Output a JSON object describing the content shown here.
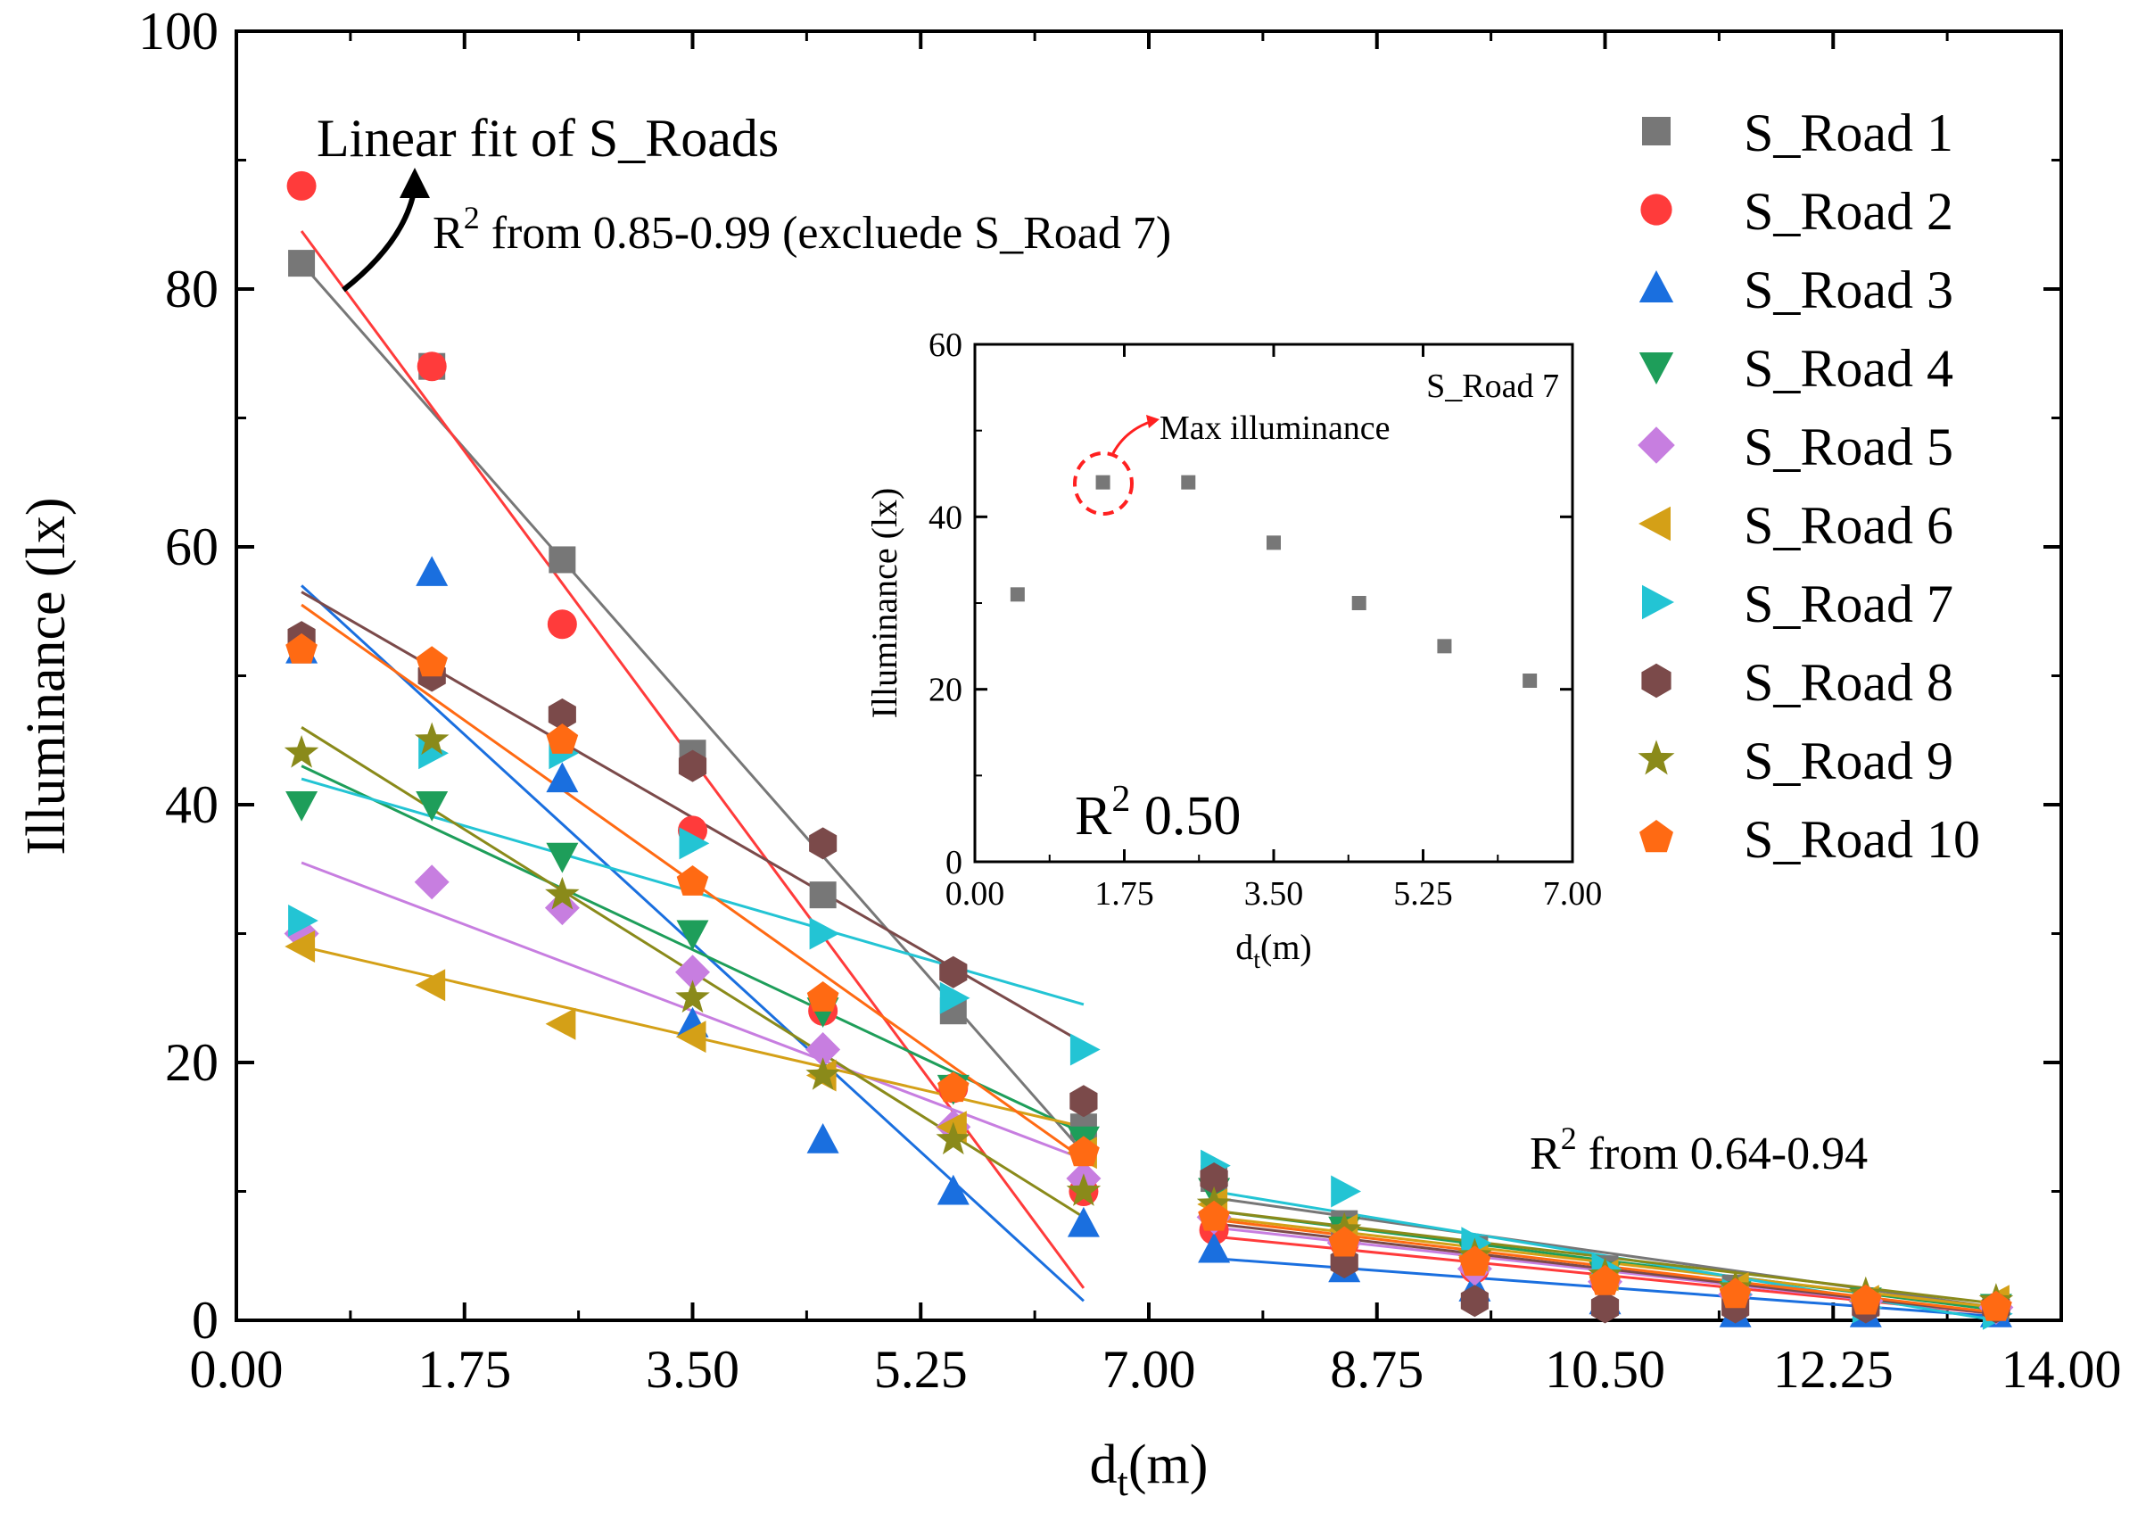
{
  "chart_data": [
    {
      "type": "scatter",
      "title": "",
      "xlabel": "d",
      "xlabel_sub": "t",
      "xlabel_unit": "(m)",
      "ylabel": "Illuminance (lx)",
      "xlim": [
        0,
        14
      ],
      "ylim": [
        0,
        100
      ],
      "xticks": [
        "0.00",
        "1.75",
        "3.50",
        "5.25",
        "7.00",
        "8.75",
        "10.50",
        "12.25",
        "14.00"
      ],
      "yticks": [
        "0",
        "20",
        "40",
        "60",
        "80",
        "100"
      ],
      "grid": false,
      "legend": "right",
      "x": [
        0.5,
        1.5,
        2.5,
        3.5,
        4.5,
        5.5,
        6.5,
        7.5,
        8.5,
        9.5,
        10.5,
        11.5,
        12.5,
        13.5
      ],
      "series": [
        {
          "name": "S_Road 1",
          "marker": "square",
          "color": "#777777",
          "values": [
            82,
            74,
            59,
            44,
            33,
            24,
            15,
            11,
            7.5,
            5.5,
            4,
            2.5,
            1.5,
            1
          ]
        },
        {
          "name": "S_Road 2",
          "marker": "circle",
          "color": "#ff3b3b",
          "values": [
            88,
            74,
            54,
            38,
            24,
            18,
            10,
            7,
            6,
            4,
            3,
            2,
            1.5,
            1
          ]
        },
        {
          "name": "S_Road 3",
          "marker": "triangle-up",
          "color": "#1a6fdf",
          "values": [
            52,
            58,
            42,
            23,
            14,
            10,
            7.5,
            5.5,
            4,
            2.5,
            1.5,
            0.5,
            0.5,
            0.5
          ]
        },
        {
          "name": "S_Road 4",
          "marker": "triangle-down",
          "color": "#1e9e5a",
          "values": [
            40,
            40,
            36,
            30,
            24,
            18,
            14,
            10,
            7,
            5,
            3.5,
            2,
            1.5,
            1
          ]
        },
        {
          "name": "S_Road 5",
          "marker": "diamond",
          "color": "#c77ee0",
          "values": [
            30,
            34,
            32,
            27,
            21,
            15,
            11,
            8,
            6,
            4,
            3,
            2,
            1.5,
            1
          ]
        },
        {
          "name": "S_Road 6",
          "marker": "triangle-left",
          "color": "#d4a017",
          "values": [
            29,
            26,
            23,
            22,
            19,
            15,
            13,
            9,
            7,
            5,
            3.5,
            2.5,
            1.5,
            1.5
          ]
        },
        {
          "name": "S_Road 7",
          "marker": "triangle-right",
          "color": "#23c4d4",
          "values": [
            31,
            44,
            44,
            37,
            30,
            25,
            21,
            12,
            10,
            6,
            4,
            2,
            1,
            0.5
          ]
        },
        {
          "name": "S_Road 8",
          "marker": "hexagon",
          "color": "#7b4a4a",
          "values": [
            53,
            50,
            47,
            43,
            37,
            27,
            17,
            11,
            4.5,
            1.5,
            1,
            1,
            1,
            1
          ]
        },
        {
          "name": "S_Road 9",
          "marker": "star",
          "color": "#8a8a1a",
          "values": [
            44,
            45,
            33,
            25,
            19,
            14,
            10,
            9,
            7,
            5,
            3.5,
            2.5,
            2,
            1.5
          ]
        },
        {
          "name": "S_Road 10",
          "marker": "pentagon",
          "color": "#ff6a13",
          "values": [
            52,
            51,
            45,
            34,
            25,
            18,
            13,
            8,
            6,
            4.5,
            3,
            2,
            1.5,
            1
          ]
        }
      ],
      "fit_lines": {
        "near_x_range": [
          0.5,
          6.5
        ],
        "far_x_range": [
          7.5,
          13.5
        ],
        "near": [
          {
            "series": "S_Road 1",
            "y": [
              82,
              13
            ]
          },
          {
            "series": "S_Road 2",
            "y": [
              84.5,
              2.5
            ]
          },
          {
            "series": "S_Road 3",
            "y": [
              57,
              1.5
            ]
          },
          {
            "series": "S_Road 4",
            "y": [
              43,
              14.5
            ]
          },
          {
            "series": "S_Road 5",
            "y": [
              35.5,
              12.5
            ]
          },
          {
            "series": "S_Road 6",
            "y": [
              29,
              15
            ]
          },
          {
            "series": "S_Road 7",
            "y": [
              42,
              24.5
            ]
          },
          {
            "series": "S_Road 8",
            "y": [
              56.5,
              21.5
            ]
          },
          {
            "series": "S_Road 9",
            "y": [
              46,
              8
            ]
          },
          {
            "series": "S_Road 10",
            "y": [
              55.5,
              12.5
            ]
          }
        ],
        "far": [
          {
            "series": "S_Road 1",
            "y": [
              9.5,
              1
            ]
          },
          {
            "series": "S_Road 2",
            "y": [
              6.5,
              0.5
            ]
          },
          {
            "series": "S_Road 3",
            "y": [
              4.8,
              0.3
            ]
          },
          {
            "series": "S_Road 4",
            "y": [
              8.5,
              0.8
            ]
          },
          {
            "series": "S_Road 5",
            "y": [
              7.2,
              0.5
            ]
          },
          {
            "series": "S_Road 6",
            "y": [
              8,
              1
            ]
          },
          {
            "series": "S_Road 7",
            "y": [
              10,
              0
            ]
          },
          {
            "series": "S_Road 8",
            "y": [
              7.5,
              0.5
            ]
          },
          {
            "series": "S_Road 9",
            "y": [
              8.5,
              1.3
            ]
          },
          {
            "series": "S_Road 10",
            "y": [
              7.8,
              0.6
            ]
          }
        ]
      },
      "annotations": {
        "fit_title": "Linear fit of S_Roads",
        "fit_r2": {
          "main": "R",
          "sup": "2",
          "rest": " from 0.85-0.99 (excluede S_Road 7)"
        },
        "far_r2": {
          "main": "R",
          "sup": "2",
          "rest": " from 0.64-0.94"
        }
      }
    },
    {
      "type": "scatter",
      "title": "S_Road 7",
      "xlabel": "d",
      "xlabel_sub": "t",
      "xlabel_unit": "(m)",
      "ylabel": "Illuminance (lx)",
      "xlim": [
        0,
        7
      ],
      "ylim": [
        0,
        60
      ],
      "xticks": [
        "0.00",
        "1.75",
        "3.50",
        "5.25",
        "7.00"
      ],
      "yticks": [
        "0",
        "20",
        "40",
        "60"
      ],
      "grid": false,
      "x": [
        0.5,
        1.5,
        2.5,
        3.5,
        4.5,
        5.5,
        6.5
      ],
      "series": [
        {
          "marker": "square",
          "color": "#777777",
          "values": [
            31,
            44,
            44,
            37,
            30,
            25,
            21
          ]
        }
      ],
      "annotations": {
        "max_label": "Max illuminance",
        "r2": {
          "main": "R",
          "sup": "2",
          "rest": " 0.50"
        }
      }
    }
  ]
}
